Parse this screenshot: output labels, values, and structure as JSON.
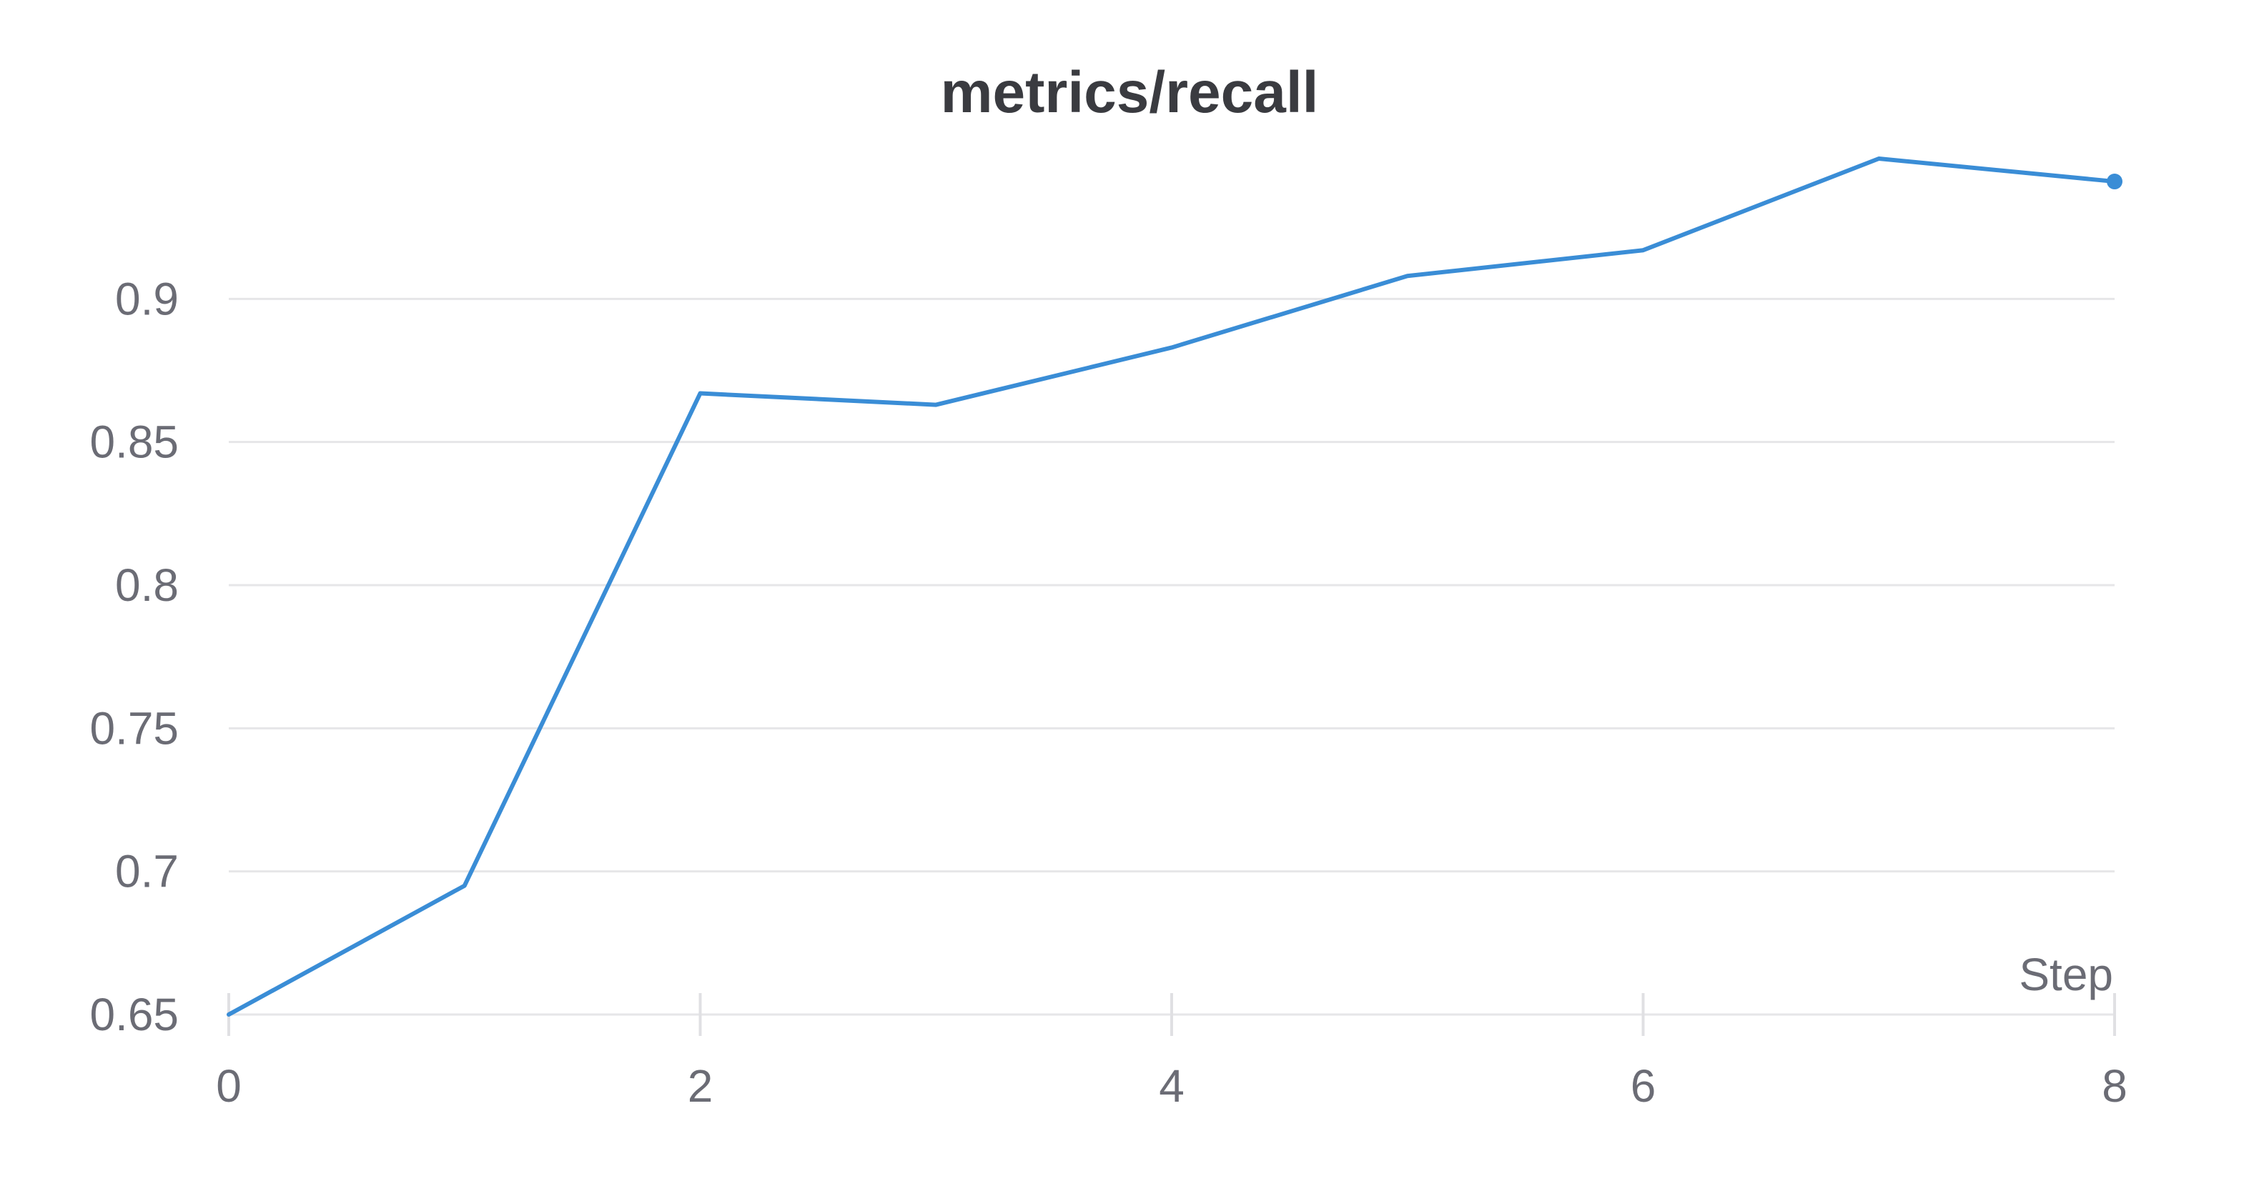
{
  "chart_data": {
    "type": "line",
    "title": "metrics/recall",
    "xlabel": "Step",
    "ylabel": "",
    "x": [
      0,
      1,
      2,
      3,
      4,
      5,
      6,
      7,
      8
    ],
    "series": [
      {
        "values": [
          0.65,
          0.695,
          0.867,
          0.863,
          0.883,
          0.908,
          0.917,
          0.949,
          0.941
        ]
      }
    ],
    "xlim": [
      0,
      8
    ],
    "ylim": [
      0.65,
      0.95
    ],
    "x_ticks": [
      0,
      2,
      4,
      6,
      8
    ],
    "y_ticks": [
      0.65,
      0.7,
      0.75,
      0.8,
      0.85,
      0.9
    ],
    "x_tick_labels": [
      "0",
      "2",
      "4",
      "6",
      "8"
    ],
    "y_tick_labels": [
      "0.65",
      "0.7",
      "0.75",
      "0.8",
      "0.85",
      "0.9"
    ],
    "grid": true,
    "legend": "none",
    "colors": {
      "series": "#3a8dd6",
      "grid": "#e6e6e8",
      "text": "#6b6c75",
      "title": "#3a3b40"
    }
  }
}
